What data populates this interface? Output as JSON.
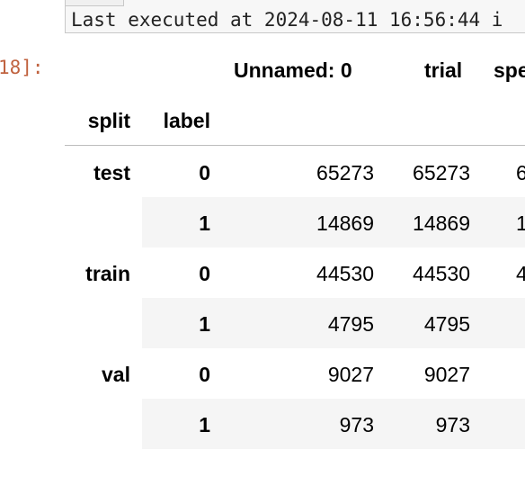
{
  "exec_status": "Last executed at 2024-08-11 16:56:44 i",
  "cell_prompt": "18]:",
  "columns": [
    "Unnamed: 0",
    "trial",
    "spe"
  ],
  "index_names": [
    "split",
    "label"
  ],
  "rows": [
    {
      "split": "test",
      "label": "0",
      "unnamed": "65273",
      "trial": "65273",
      "third": "6"
    },
    {
      "split": "",
      "label": "1",
      "unnamed": "14869",
      "trial": "14869",
      "third": "1"
    },
    {
      "split": "train",
      "label": "0",
      "unnamed": "44530",
      "trial": "44530",
      "third": "4"
    },
    {
      "split": "",
      "label": "1",
      "unnamed": "4795",
      "trial": "4795",
      "third": ""
    },
    {
      "split": "val",
      "label": "0",
      "unnamed": "9027",
      "trial": "9027",
      "third": ""
    },
    {
      "split": "",
      "label": "1",
      "unnamed": "973",
      "trial": "973",
      "third": ""
    }
  ]
}
